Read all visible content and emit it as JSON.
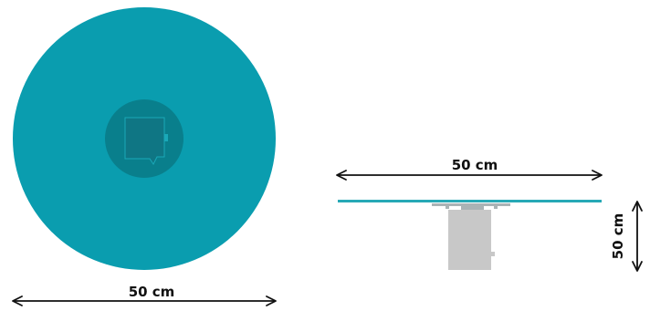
{
  "colors": {
    "top_surface": "#0a9daf",
    "center_plate": "#097f8c",
    "bracket": "#0f7684",
    "bracket_outline": "#1aa8b8",
    "glass_edge": "#27a9b6",
    "base": "#c8c8c8",
    "hardware": "#aab3b5",
    "arrow": "#111111"
  },
  "top_view": {
    "width_label": "50 cm"
  },
  "side_view": {
    "width_label": "50 cm",
    "height_label": "50 cm"
  }
}
